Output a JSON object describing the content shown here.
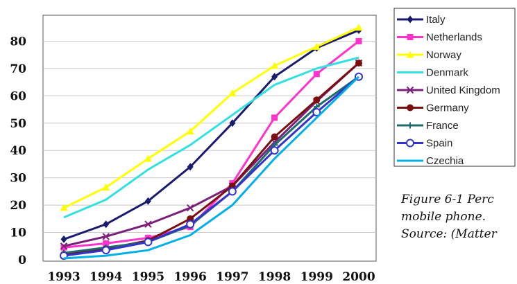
{
  "chart_data": {
    "type": "line",
    "title": "",
    "xlabel": "",
    "ylabel": "",
    "x": [
      "1993",
      "1994",
      "1995",
      "1996",
      "1997",
      "1998",
      "1999",
      "2000"
    ],
    "yticks": [
      "0",
      "10",
      "20",
      "30",
      "40",
      "50",
      "60",
      "70",
      "80"
    ],
    "ylim": [
      0,
      90
    ],
    "grid": "horizontal",
    "legend": "right",
    "series": [
      {
        "name": "Italy",
        "color": "#1a1a6e",
        "marker": "diamond",
        "values": [
          7.5,
          13,
          21.5,
          34,
          50,
          67,
          77.5,
          84
        ]
      },
      {
        "name": "Netherlands",
        "color": "#ff33cc",
        "marker": "square",
        "values": [
          4.5,
          6,
          8,
          12,
          28,
          52,
          68,
          80
        ]
      },
      {
        "name": "Norway",
        "color": "#ffff00",
        "marker": "triangle",
        "values": [
          19,
          26.5,
          37,
          47,
          61,
          71,
          78,
          85
        ]
      },
      {
        "name": "Denmark",
        "color": "#33e0e0",
        "marker": "none",
        "values": [
          15.5,
          22,
          33,
          42,
          53,
          64,
          70,
          74
        ]
      },
      {
        "name": "United Kingdom",
        "color": "#7a1f7a",
        "marker": "cross",
        "values": [
          5,
          8.5,
          13,
          19,
          27,
          43,
          58,
          72
        ]
      },
      {
        "name": "Germany",
        "color": "#7a0f0f",
        "marker": "circle",
        "values": [
          2,
          4,
          7,
          15,
          27,
          45,
          58.5,
          72
        ]
      },
      {
        "name": "France",
        "color": "#1f6b6b",
        "marker": "plus",
        "values": [
          2.5,
          4.5,
          6.5,
          12.5,
          25,
          42,
          56,
          67
        ]
      },
      {
        "name": "Spain",
        "color": "#3333cc",
        "marker": "ring",
        "values": [
          1.5,
          3.5,
          6.5,
          13,
          25,
          40,
          54,
          67
        ]
      },
      {
        "name": "Czechia",
        "color": "#00b0e6",
        "marker": "none",
        "values": [
          0.5,
          1.5,
          3.5,
          9,
          20,
          37,
          52,
          67
        ]
      }
    ]
  },
  "caption": {
    "line1": "Figure 6-1 Perc",
    "line2": "mobile phone.",
    "line3": "Source: (Matter"
  }
}
